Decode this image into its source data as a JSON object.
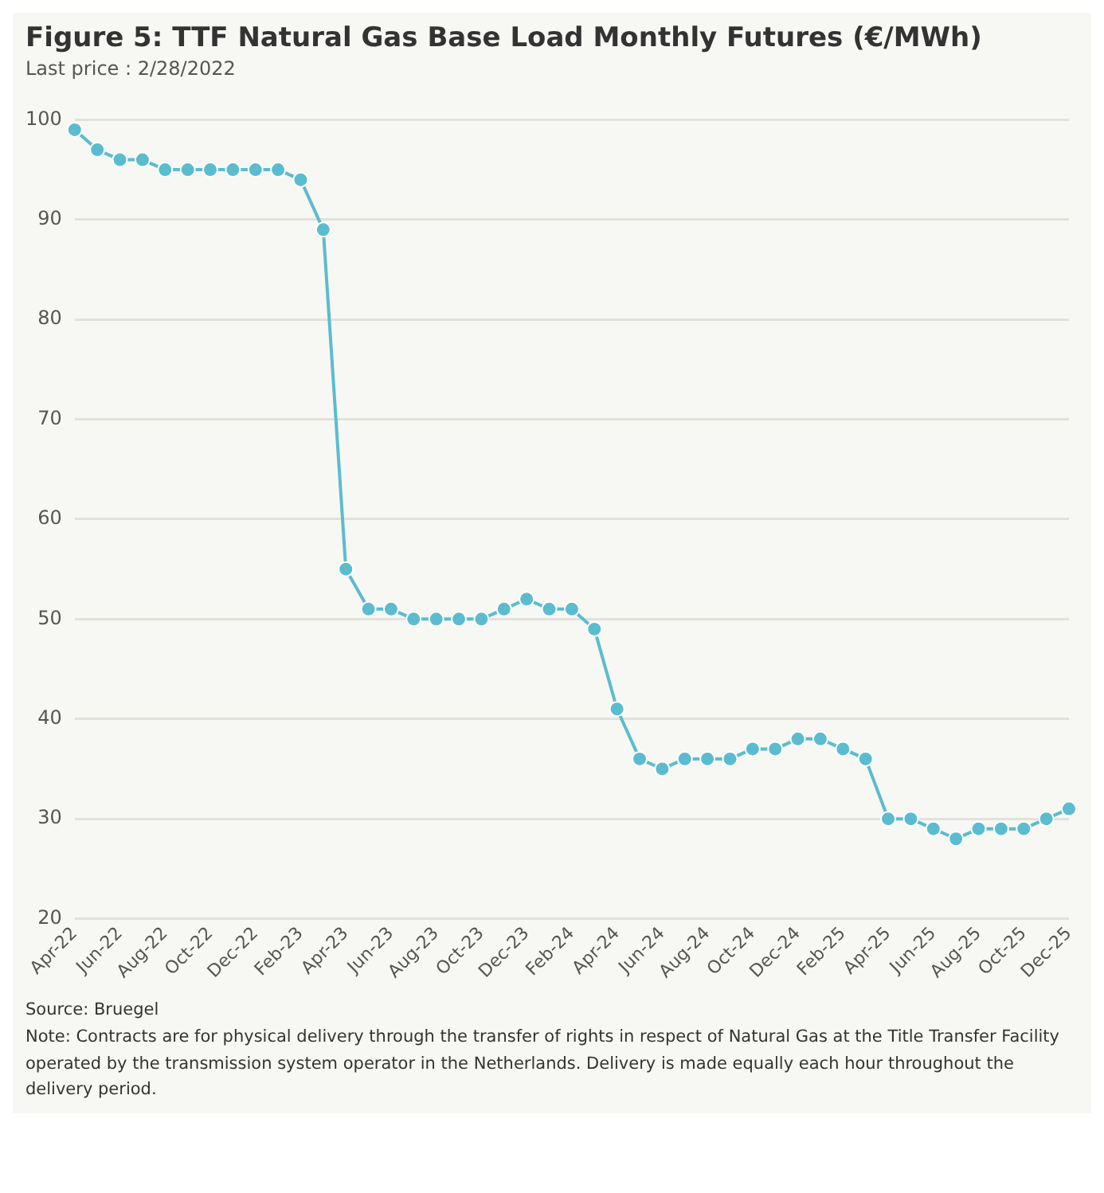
{
  "chart_data": {
    "type": "line",
    "title": "Figure 5: TTF Natural Gas Base Load Monthly Futures (€/MWh)",
    "subtitle": "Last price : 2/28/2022",
    "categories": [
      "Apr-22",
      null,
      "Jun-22",
      null,
      "Aug-22",
      null,
      "Oct-22",
      null,
      "Dec-22",
      null,
      "Feb-23",
      null,
      "Apr-23",
      null,
      "Jun-23",
      null,
      "Aug-23",
      null,
      "Oct-23",
      null,
      "Dec-23",
      null,
      "Feb-24",
      null,
      "Apr-24",
      null,
      "Jun-24",
      null,
      "Aug-24",
      null,
      "Oct-24",
      null,
      "Dec-24",
      null,
      "Feb-25",
      null,
      "Apr-25",
      null,
      "Jun-25",
      null,
      "Aug-25",
      null,
      "Oct-25",
      null,
      "Dec-25"
    ],
    "series": [
      {
        "color": "#5bbccf",
        "values": [
          99,
          97,
          96,
          96,
          95,
          95,
          95,
          95,
          95,
          95,
          94,
          89,
          55,
          51,
          51,
          50,
          50,
          50,
          50,
          51,
          52,
          51,
          51,
          49,
          41,
          36,
          35,
          36,
          36,
          36,
          37,
          37,
          38,
          38,
          37,
          36,
          30,
          30,
          29,
          28,
          29,
          29,
          29,
          30,
          31
        ]
      }
    ],
    "ylim": [
      20,
      100
    ],
    "yticks": [
      20,
      30,
      40,
      50,
      60,
      70,
      80,
      90,
      100
    ],
    "grid": "y",
    "legend": false,
    "marker": "circle",
    "line_style": "solid",
    "annotations": [
      "Source: Bruegel",
      "Note: Contracts are for physical delivery through the transfer of rights in respect of Natural Gas at the Title Transfer Facility operated by the transmission system operator in the Netherlands. Delivery is made equally each hour throughout the delivery period."
    ]
  }
}
